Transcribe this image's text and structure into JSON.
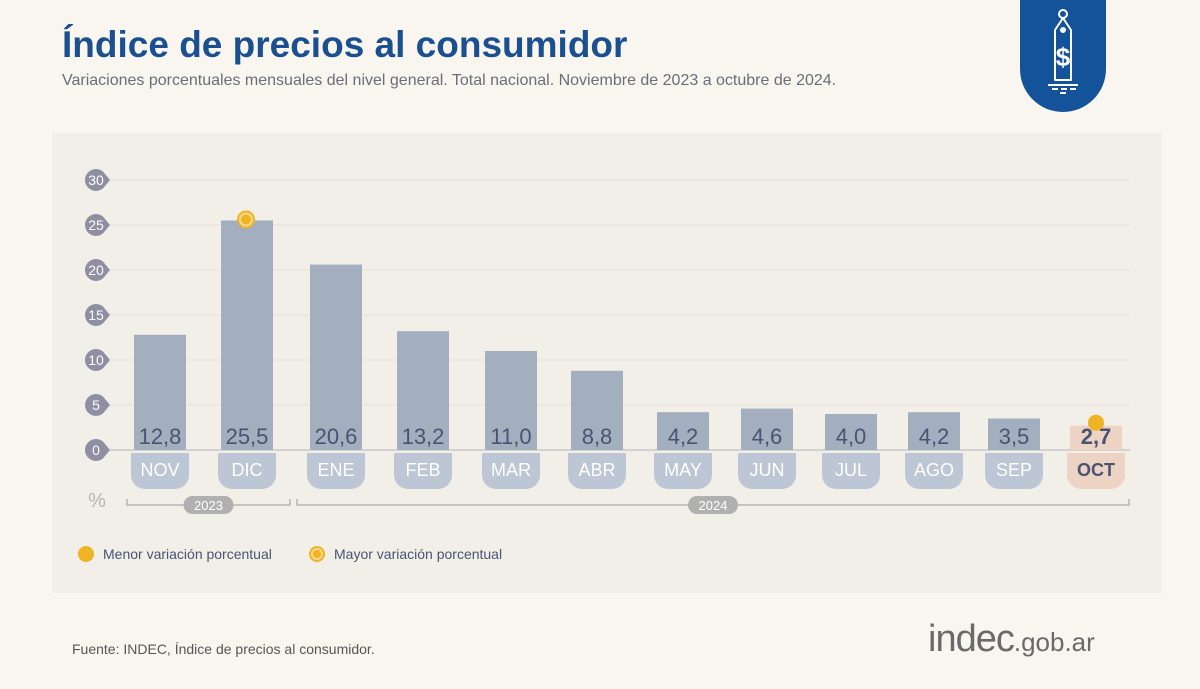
{
  "header": {
    "title": "Índice de precios al consumidor",
    "subtitle": "Variaciones porcentuales mensuales del nivel general. Total nacional. Noviembre de 2023 a octubre de 2024.",
    "badge_icon": "price-tag-dollar-icon"
  },
  "footer": {
    "source": "Fuente: INDEC, Índice de precios al consumidor.",
    "logo_main": "indec",
    "logo_suffix": ".gob.ar"
  },
  "colors": {
    "bar": "#a3aebf",
    "label_pill": "#bcc6d4",
    "highlight_bar": "#ecd3c4",
    "accent": "#f0b323",
    "axis_bubble": "#8e8fa3",
    "title": "#1b4f8f"
  },
  "chart_data": {
    "type": "bar",
    "categories": [
      "NOV",
      "DIC",
      "ENE",
      "FEB",
      "MAR",
      "ABR",
      "MAY",
      "JUN",
      "JUL",
      "AGO",
      "SEP",
      "OCT"
    ],
    "values": [
      12.8,
      25.5,
      20.6,
      13.2,
      11.0,
      8.8,
      4.2,
      4.6,
      4.0,
      4.2,
      3.5,
      2.7
    ],
    "value_labels": [
      "12,8",
      "25,5",
      "20,6",
      "13,2",
      "11,0",
      "8,8",
      "4,2",
      "4,6",
      "4,0",
      "4,2",
      "3,5",
      "2,7"
    ],
    "ylim": [
      0,
      30
    ],
    "yticks": [
      0,
      5,
      10,
      15,
      20,
      25,
      30
    ],
    "ylabel": "%",
    "grid": true,
    "years": [
      {
        "label": "2023",
        "months": [
          "NOV",
          "DIC"
        ]
      },
      {
        "label": "2024",
        "months": [
          "ENE",
          "FEB",
          "MAR",
          "ABR",
          "MAY",
          "JUN",
          "JUL",
          "AGO",
          "SEP",
          "OCT"
        ]
      }
    ],
    "min_marker": "OCT",
    "max_marker": "DIC",
    "legend": {
      "position": "bottom-left",
      "items": [
        {
          "label": "Menor variación porcentual",
          "marker": "filled-circle"
        },
        {
          "label": "Mayor variación porcentual",
          "marker": "ring-circle"
        }
      ]
    }
  }
}
